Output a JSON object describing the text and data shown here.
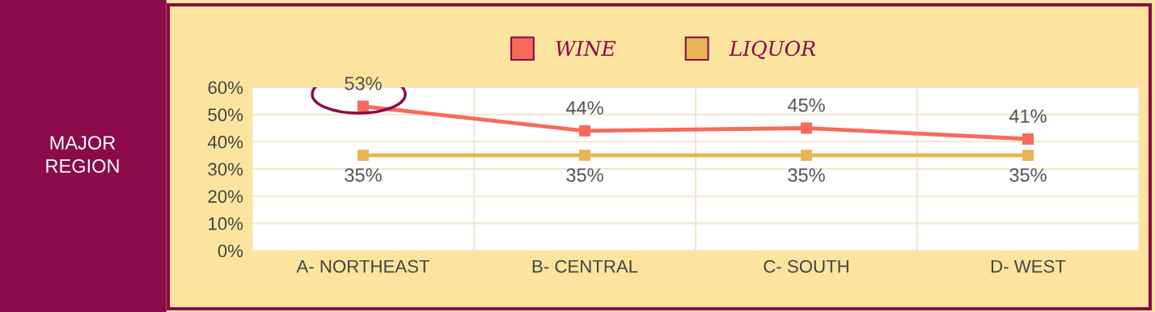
{
  "chart_data": {
    "type": "line",
    "ylabel": "MAJOR\nREGION",
    "categories": [
      "A- NORTHEAST",
      "B- CENTRAL",
      "C- SOUTH",
      "D- WEST"
    ],
    "series": [
      {
        "name": "WINE",
        "color": "#f76a5c",
        "values": [
          53,
          44,
          45,
          41
        ]
      },
      {
        "name": "LIQUOR",
        "color": "#e9b454",
        "values": [
          35,
          35,
          35,
          35
        ]
      }
    ],
    "ylim": [
      0,
      60
    ],
    "yticks": [
      {
        "value": 0,
        "label": "0%"
      },
      {
        "value": 10,
        "label": "10%"
      },
      {
        "value": 20,
        "label": "20%"
      },
      {
        "value": 30,
        "label": "30%"
      },
      {
        "value": 40,
        "label": "40%"
      },
      {
        "value": 50,
        "label": "50%"
      },
      {
        "value": 60,
        "label": "60%"
      }
    ],
    "value_labels": [
      [
        "53%",
        "44%",
        "45%",
        "41%"
      ],
      [
        "35%",
        "35%",
        "35%",
        "35%"
      ]
    ],
    "grid": true,
    "legend": "top",
    "marker": "square",
    "line_style": "solid"
  }
}
